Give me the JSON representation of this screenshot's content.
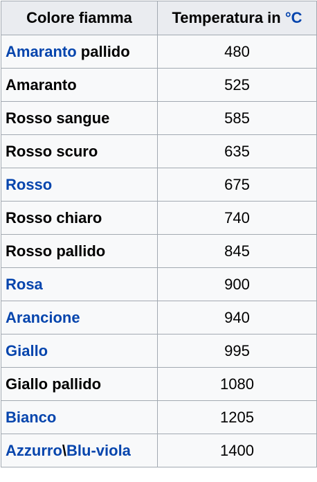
{
  "header": {
    "col_color": "Colore fiamma",
    "col_temp_prefix": "Temperatura in ",
    "col_temp_unit": "°C"
  },
  "rows": [
    {
      "segments": [
        {
          "text": "Amaranto",
          "link": true
        },
        {
          "text": " pallido",
          "link": false
        }
      ],
      "temp": "480"
    },
    {
      "segments": [
        {
          "text": "Amaranto",
          "link": false
        }
      ],
      "temp": "525"
    },
    {
      "segments": [
        {
          "text": "Rosso sangue",
          "link": false
        }
      ],
      "temp": "585"
    },
    {
      "segments": [
        {
          "text": "Rosso scuro",
          "link": false
        }
      ],
      "temp": "635"
    },
    {
      "segments": [
        {
          "text": "Rosso",
          "link": true
        }
      ],
      "temp": "675"
    },
    {
      "segments": [
        {
          "text": "Rosso chiaro",
          "link": false
        }
      ],
      "temp": "740"
    },
    {
      "segments": [
        {
          "text": "Rosso pallido",
          "link": false
        }
      ],
      "temp": "845"
    },
    {
      "segments": [
        {
          "text": "Rosa",
          "link": true
        }
      ],
      "temp": "900"
    },
    {
      "segments": [
        {
          "text": "Arancione",
          "link": true
        }
      ],
      "temp": "940"
    },
    {
      "segments": [
        {
          "text": "Giallo",
          "link": true
        }
      ],
      "temp": "995"
    },
    {
      "segments": [
        {
          "text": "Giallo pallido",
          "link": false
        }
      ],
      "temp": "1080"
    },
    {
      "segments": [
        {
          "text": "Bianco",
          "link": true
        }
      ],
      "temp": "1205"
    },
    {
      "segments": [
        {
          "text": "Azzurro",
          "link": true
        },
        {
          "text": "\\",
          "link": false
        },
        {
          "text": "Blu-viola",
          "link": true
        }
      ],
      "temp": "1400"
    }
  ],
  "colors": {
    "link": "#0645ad",
    "text": "#000000",
    "header_bg": "#eaecf0",
    "cell_bg": "#f8f9fa",
    "border": "#a2a9b1"
  }
}
